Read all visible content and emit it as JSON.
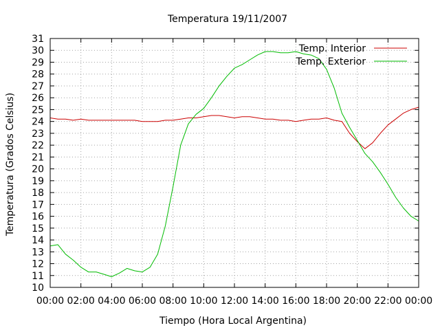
{
  "chart_data": {
    "type": "line",
    "title": "Temperatura 19/11/2007",
    "xlabel": "Tiempo (Hora Local Argentina)",
    "ylabel": "Temperatura (Grados Celsius)",
    "ylim": [
      10,
      31
    ],
    "xlim": [
      "00:00",
      "24:00"
    ],
    "grid": true,
    "legend_position": "top-right",
    "x_ticks": [
      "00:00",
      "02:00",
      "04:00",
      "06:00",
      "08:00",
      "10:00",
      "12:00",
      "14:00",
      "16:00",
      "18:00",
      "20:00",
      "22:00",
      "00:00"
    ],
    "y_ticks": [
      10,
      11,
      12,
      13,
      14,
      15,
      16,
      17,
      18,
      19,
      20,
      21,
      22,
      23,
      24,
      25,
      26,
      27,
      28,
      29,
      30,
      31
    ],
    "x": [
      "00:00",
      "00:30",
      "01:00",
      "01:30",
      "02:00",
      "02:30",
      "03:00",
      "03:30",
      "04:00",
      "04:30",
      "05:00",
      "05:30",
      "06:00",
      "06:30",
      "07:00",
      "07:30",
      "08:00",
      "08:30",
      "09:00",
      "09:30",
      "10:00",
      "10:30",
      "11:00",
      "11:30",
      "12:00",
      "12:30",
      "13:00",
      "13:30",
      "14:00",
      "14:30",
      "15:00",
      "15:30",
      "16:00",
      "16:30",
      "17:00",
      "17:30",
      "18:00",
      "18:30",
      "19:00",
      "19:30",
      "20:00",
      "20:30",
      "21:00",
      "21:30",
      "22:00",
      "22:30",
      "23:00",
      "23:30",
      "24:00"
    ],
    "series": [
      {
        "name": "Temp. Interior",
        "color": "#cc0000",
        "values": [
          24.3,
          24.2,
          24.2,
          24.1,
          24.2,
          24.1,
          24.1,
          24.1,
          24.1,
          24.1,
          24.1,
          24.1,
          24.0,
          24.0,
          24.0,
          24.1,
          24.1,
          24.2,
          24.3,
          24.3,
          24.4,
          24.5,
          24.5,
          24.4,
          24.3,
          24.4,
          24.4,
          24.3,
          24.2,
          24.2,
          24.1,
          24.1,
          24.0,
          24.1,
          24.2,
          24.2,
          24.3,
          24.1,
          24.0,
          23.0,
          22.3,
          21.7,
          22.2,
          23.0,
          23.7,
          24.2,
          24.7,
          25.0,
          25.2
        ]
      },
      {
        "name": "Temp. Exterior",
        "color": "#00bb00",
        "values": [
          13.5,
          13.6,
          12.8,
          12.3,
          11.7,
          11.3,
          11.3,
          11.1,
          10.9,
          11.2,
          11.6,
          11.4,
          11.3,
          11.7,
          12.8,
          15.2,
          18.5,
          22.0,
          23.8,
          24.6,
          25.1,
          26.0,
          27.0,
          27.8,
          28.5,
          28.8,
          29.2,
          29.6,
          29.9,
          29.9,
          29.8,
          29.8,
          29.9,
          29.7,
          29.6,
          29.3,
          28.4,
          26.8,
          24.7,
          23.5,
          22.4,
          21.3,
          20.6,
          19.7,
          18.7,
          17.6,
          16.7,
          16.0,
          15.6
        ]
      }
    ]
  }
}
